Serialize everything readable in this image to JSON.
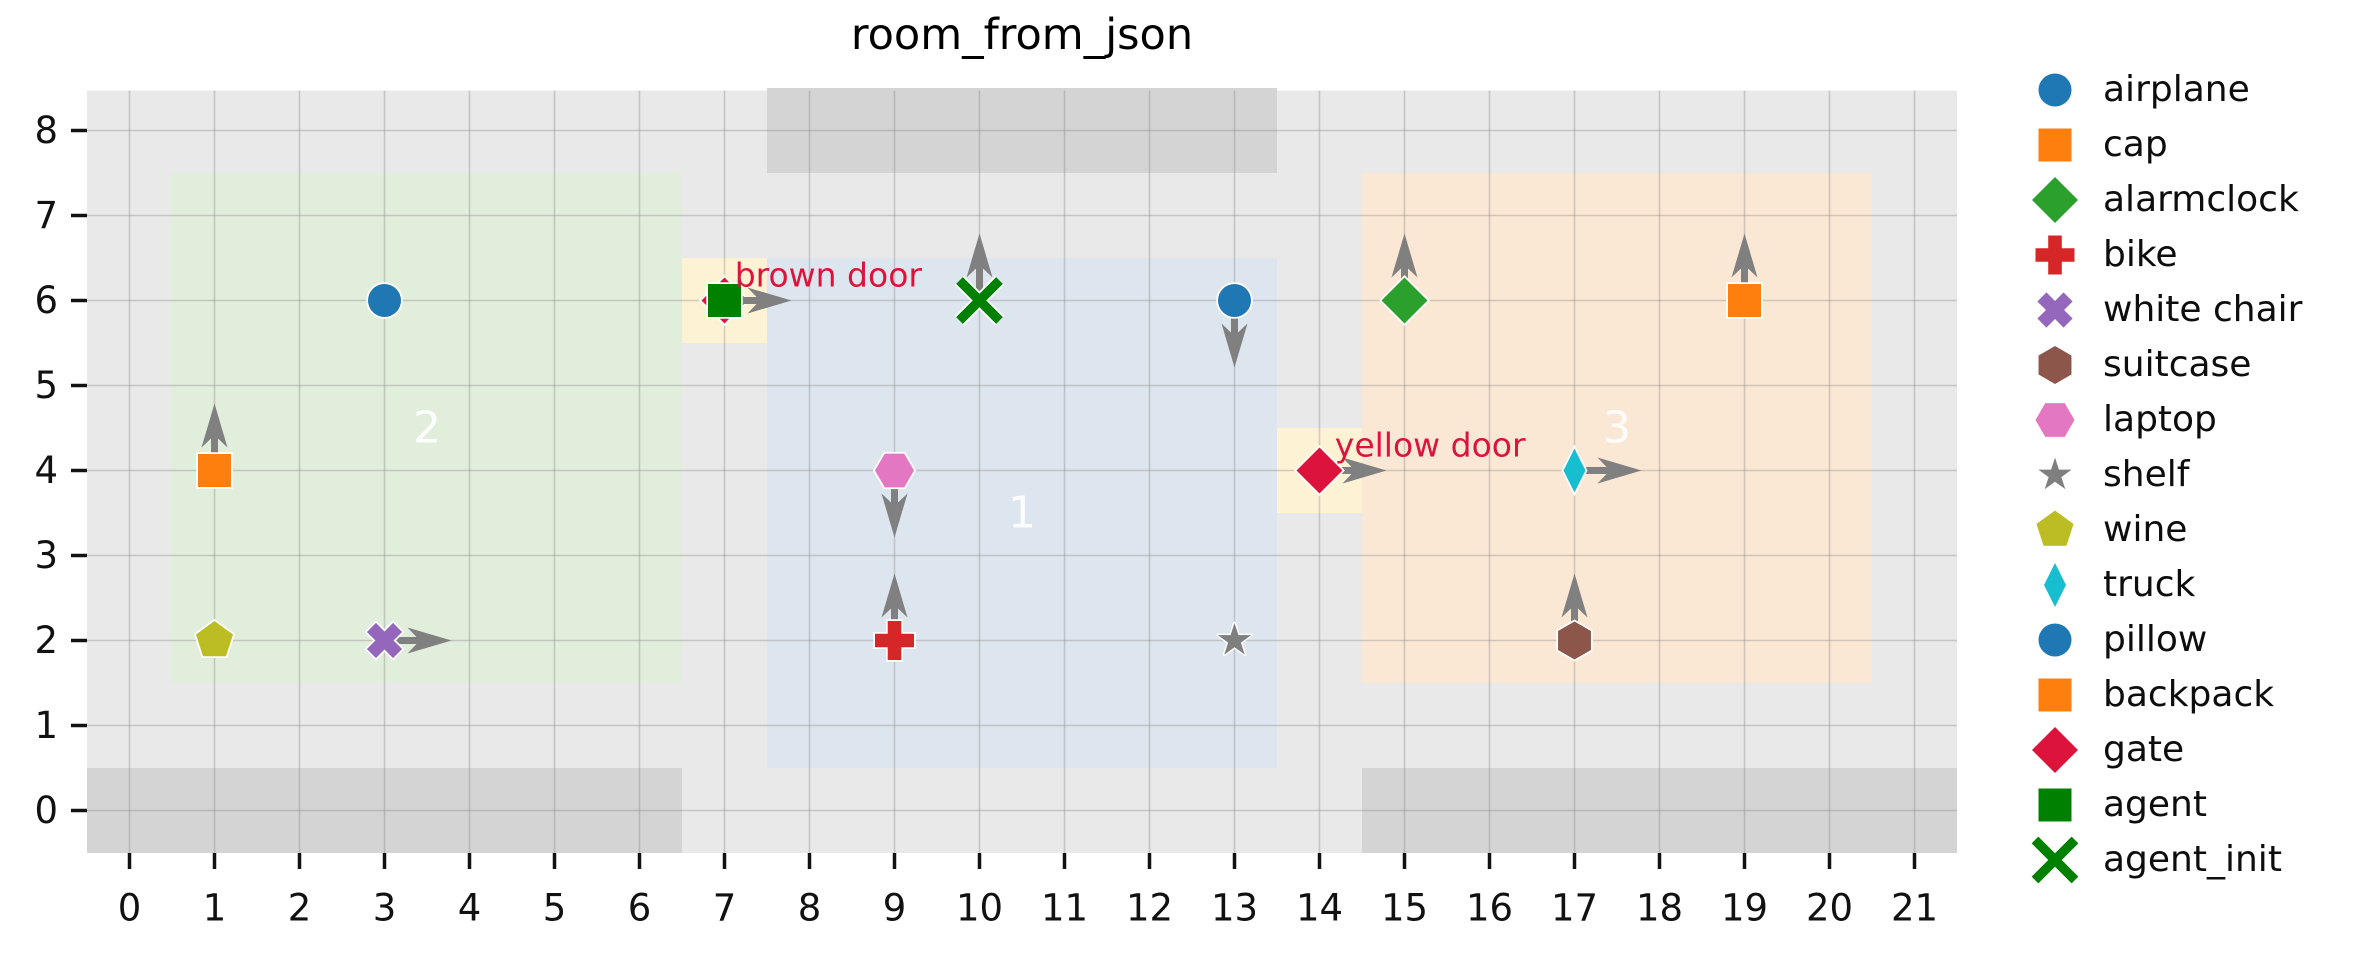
{
  "chart_data": {
    "type": "scatter",
    "title": "room_from_json",
    "xlabel": "",
    "ylabel": "",
    "xlim": [
      -0.5,
      21.5
    ],
    "ylim": [
      -0.5,
      8.5
    ],
    "xticks": [
      0,
      1,
      2,
      3,
      4,
      5,
      6,
      7,
      8,
      9,
      10,
      11,
      12,
      13,
      14,
      15,
      16,
      17,
      18,
      19,
      20,
      21
    ],
    "yticks": [
      0,
      1,
      2,
      3,
      4,
      5,
      6,
      7,
      8
    ],
    "grid": true,
    "legend_position": "outside-right",
    "colors": {
      "plot_background": "#e9e9e9",
      "wall": "#d4d4d4",
      "grid_line": "#808080",
      "door_area": "#fdf3d4",
      "arrow": "#808080",
      "door_label_text": "#dc143c",
      "room_label_text": "#ffffff",
      "tick_text": "#111111",
      "title_text": "#000000",
      "marker_edge": "#ffffff"
    },
    "walls": [
      {
        "x": 7.5,
        "y": 7.5,
        "w": 6,
        "h": 1
      },
      {
        "x": -0.5,
        "y": -0.5,
        "w": 7,
        "h": 1
      },
      {
        "x": 14.5,
        "y": -0.5,
        "w": 7,
        "h": 1
      }
    ],
    "rooms": [
      {
        "id": "1",
        "x": 7.5,
        "y": 0.5,
        "w": 6,
        "h": 6,
        "color": "#dde6ee",
        "label": "1",
        "label_x": 10.5,
        "label_y": 3.5
      },
      {
        "id": "2",
        "x": 0.5,
        "y": 1.5,
        "w": 6,
        "h": 6,
        "color": "#e2eedc",
        "label": "2",
        "label_x": 3.5,
        "label_y": 4.5
      },
      {
        "id": "3",
        "x": 14.5,
        "y": 1.5,
        "w": 6,
        "h": 6,
        "color": "#fae8d4",
        "label": "3",
        "label_x": 17.5,
        "label_y": 4.5
      }
    ],
    "doors": [
      {
        "label": "brown door",
        "area": {
          "x": 6.5,
          "y": 5.5,
          "w": 1,
          "h": 1
        },
        "hidden_marker": {
          "marker": "diamond",
          "color": "#dc143c",
          "x": 7,
          "y": 6
        },
        "label_x": 7.12,
        "label_y": 6.3
      },
      {
        "label": "yellow door",
        "area": {
          "x": 13.5,
          "y": 3.5,
          "w": 1,
          "h": 1
        },
        "hidden_marker": null,
        "label_x": 14.18,
        "label_y": 4.3
      }
    ],
    "objects": [
      {
        "name": "airplane",
        "marker": "circle",
        "color": "#1f77b4",
        "x": 3,
        "y": 6,
        "arrow": null
      },
      {
        "name": "cap",
        "marker": "square",
        "color": "#ff7f0e",
        "x": 1,
        "y": 4,
        "arrow": "up"
      },
      {
        "name": "alarmclock",
        "marker": "diamond",
        "color": "#2ca02c",
        "x": 15,
        "y": 6,
        "arrow": "up"
      },
      {
        "name": "bike",
        "marker": "plus",
        "color": "#d62728",
        "x": 9,
        "y": 2,
        "arrow": "up"
      },
      {
        "name": "white chair",
        "marker": "x",
        "color": "#9467bd",
        "x": 3,
        "y": 2,
        "arrow": "right"
      },
      {
        "name": "suitcase",
        "marker": "hexagon-pointy",
        "color": "#8c564b",
        "x": 17,
        "y": 2,
        "arrow": "up"
      },
      {
        "name": "laptop",
        "marker": "hexagon-flat",
        "color": "#e377c2",
        "x": 9,
        "y": 4,
        "arrow": "down"
      },
      {
        "name": "shelf",
        "marker": "star",
        "color": "#7f7f7f",
        "x": 13,
        "y": 2,
        "arrow": null
      },
      {
        "name": "wine",
        "marker": "pentagon",
        "color": "#bcbd22",
        "x": 1,
        "y": 2,
        "arrow": null
      },
      {
        "name": "truck",
        "marker": "thin-diamond",
        "color": "#17becf",
        "x": 17,
        "y": 4,
        "arrow": "right"
      },
      {
        "name": "pillow",
        "marker": "circle",
        "color": "#1f77b4",
        "x": 13,
        "y": 6,
        "arrow": "down"
      },
      {
        "name": "backpack",
        "marker": "square",
        "color": "#ff7f0e",
        "x": 19,
        "y": 6,
        "arrow": "up"
      },
      {
        "name": "gate",
        "marker": "diamond",
        "color": "#dc143c",
        "x": 14,
        "y": 4,
        "arrow": "right"
      },
      {
        "name": "agent",
        "marker": "square",
        "color": "#008000",
        "x": 7,
        "y": 6,
        "arrow": "right"
      },
      {
        "name": "agent_init",
        "marker": "x-stroke",
        "color": "#008000",
        "x": 10,
        "y": 6,
        "arrow": "up"
      }
    ],
    "legend": [
      {
        "label": "airplane"
      },
      {
        "label": "cap"
      },
      {
        "label": "alarmclock"
      },
      {
        "label": "bike"
      },
      {
        "label": "white chair"
      },
      {
        "label": "suitcase"
      },
      {
        "label": "laptop"
      },
      {
        "label": "shelf"
      },
      {
        "label": "wine"
      },
      {
        "label": "truck"
      },
      {
        "label": "pillow"
      },
      {
        "label": "backpack"
      },
      {
        "label": "gate"
      },
      {
        "label": "agent"
      },
      {
        "label": "agent_init"
      }
    ]
  }
}
